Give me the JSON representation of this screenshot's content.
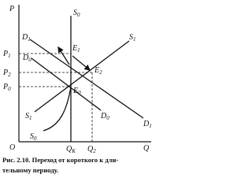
{
  "axes": {
    "y_label": "P",
    "x_label": "Q",
    "origin": "O"
  },
  "curves": {
    "S0_top": {
      "base": "S",
      "sub": "0"
    },
    "S0_bottom": {
      "base": "S",
      "sub": "0"
    },
    "D1_left": {
      "base": "D",
      "sub": "1"
    },
    "D1_right": {
      "base": "D",
      "sub": "1"
    },
    "D0_left": {
      "base": "D",
      "sub": "0"
    },
    "D0_right": {
      "base": "D",
      "sub": "0"
    },
    "S1_left": {
      "base": "S",
      "sub": "1"
    },
    "S1_right": {
      "base": "S",
      "sub": "1"
    }
  },
  "points": {
    "E1": {
      "base": "E",
      "sub": "1"
    },
    "E2": {
      "base": "E",
      "sub": "2"
    },
    "E0": {
      "base": "E",
      "sub": "0"
    }
  },
  "price_levels": {
    "P1": {
      "base": "P",
      "sub": "1"
    },
    "P2": {
      "base": "P",
      "sub": "2"
    },
    "P0": {
      "base": "P",
      "sub": "0"
    }
  },
  "quantity_levels": {
    "QK": {
      "base": "Q",
      "sub": "K"
    },
    "Q2": {
      "base": "Q",
      "sub": "2"
    }
  },
  "caption": {
    "lines": [
      "Рис. 2.10. Переход от короткого к дли-",
      "тельному периоду."
    ]
  }
}
